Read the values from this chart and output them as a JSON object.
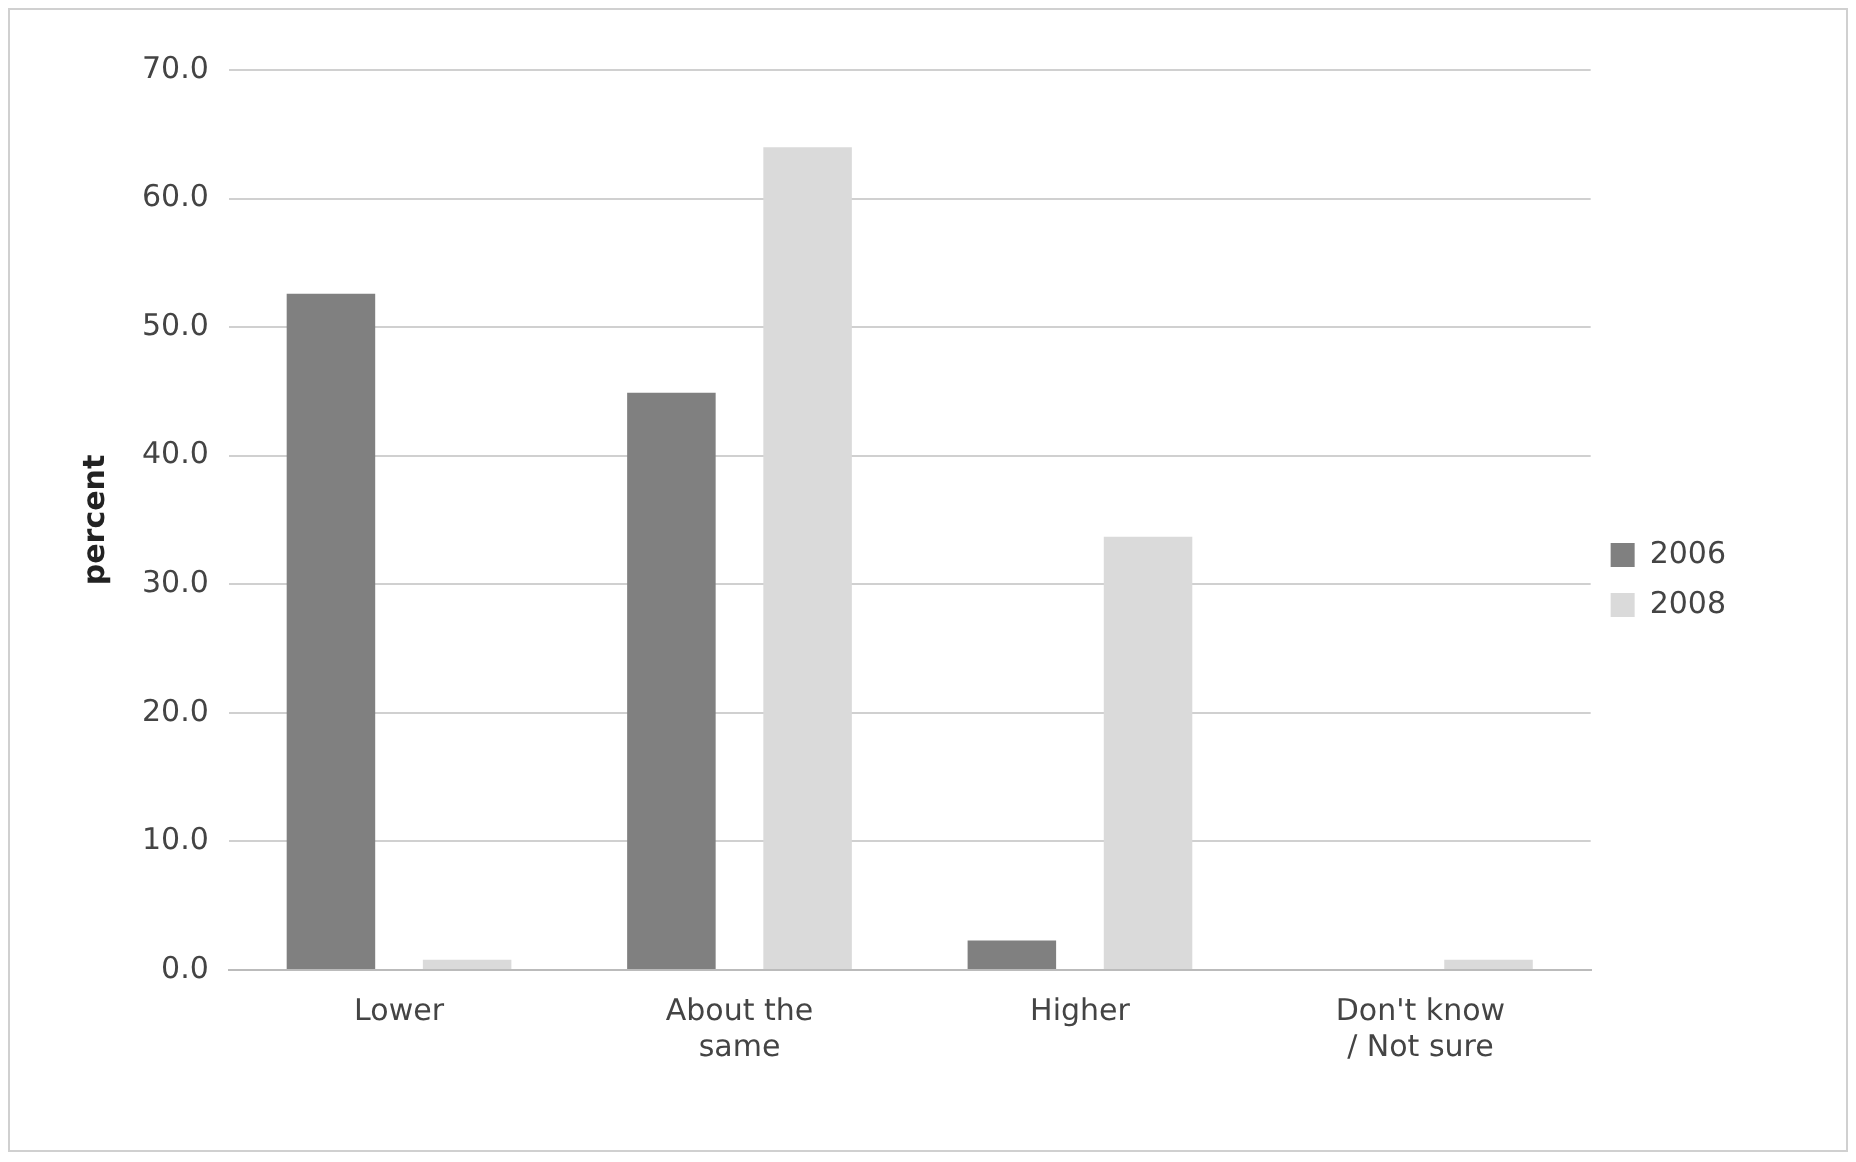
{
  "chart_data": {
    "type": "bar",
    "ylabel": "percent",
    "categories": [
      "Lower",
      "About the same",
      "Higher",
      "Don't know / Not sure"
    ],
    "series": [
      {
        "name": "2006",
        "color": "#808080",
        "values": [
          52.6,
          44.9,
          2.3,
          0
        ]
      },
      {
        "name": "2008",
        "color": "#dadada",
        "values": [
          0.8,
          64.0,
          33.7,
          0.8
        ]
      }
    ],
    "ylim": [
      0,
      70
    ],
    "yticks": [
      {
        "value": 0,
        "label": "0.0"
      },
      {
        "value": 10,
        "label": "10.0"
      },
      {
        "value": 20,
        "label": "20.0"
      },
      {
        "value": 30,
        "label": "30.0"
      },
      {
        "value": 40,
        "label": "40.0"
      },
      {
        "value": 50,
        "label": "50.0"
      },
      {
        "value": 60,
        "label": "60.0"
      },
      {
        "value": 70,
        "label": "70.0"
      }
    ],
    "grid": "y",
    "legend": "right"
  }
}
